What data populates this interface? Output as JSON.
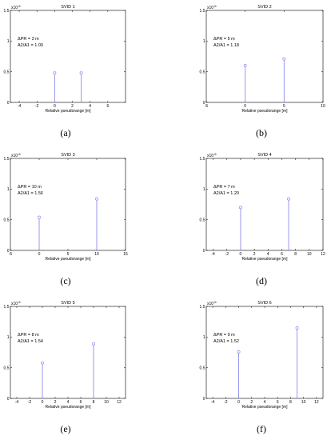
{
  "colors": {
    "stem": "#8c8cf0",
    "axis": "#000000",
    "background": "#ffffff"
  },
  "chart_data": [
    {
      "type": "stem",
      "title": "SVID 1",
      "xlabel": "Relative pseudorange [m]",
      "ylabel": "",
      "exponent": "-6",
      "xlim": [
        -5,
        8
      ],
      "xticks": [
        "-4",
        "-2",
        "0",
        "2",
        "4",
        "6"
      ],
      "xtick_values": [
        -4,
        -2,
        0,
        2,
        4,
        6
      ],
      "ylim": [
        0,
        1.5
      ],
      "yticks": [
        "0",
        "0.5",
        "1",
        "1.5"
      ],
      "ytick_values": [
        0,
        0.5,
        1,
        1.5
      ],
      "annotations": [
        "ΔPR = 3 m",
        "A2/A1 = 1.00"
      ],
      "caption": "(a)",
      "x": [
        0,
        3
      ],
      "y": [
        0.48,
        0.48
      ]
    },
    {
      "type": "stem",
      "title": "SVID 2",
      "xlabel": "Relative pseudorange [m]",
      "ylabel": "",
      "exponent": "-6",
      "xlim": [
        -5,
        10
      ],
      "xticks": [
        "-5",
        "0",
        "5",
        "10"
      ],
      "xtick_values": [
        -5,
        0,
        5,
        10
      ],
      "ylim": [
        0,
        1.5
      ],
      "yticks": [
        "0",
        "0.5",
        "1",
        "1.5"
      ],
      "ytick_values": [
        0,
        0.5,
        1,
        1.5
      ],
      "annotations": [
        "ΔPR = 5 m",
        "A2/A1 = 1.18"
      ],
      "caption": "(b)",
      "x": [
        0,
        5
      ],
      "y": [
        0.6,
        0.71
      ]
    },
    {
      "type": "stem",
      "title": "SVID 3",
      "xlabel": "Relative pseudorange [m]",
      "ylabel": "",
      "exponent": "-6",
      "xlim": [
        -5,
        15
      ],
      "xticks": [
        "-5",
        "0",
        "5",
        "10",
        "15"
      ],
      "xtick_values": [
        -5,
        0,
        5,
        10,
        15
      ],
      "ylim": [
        0,
        1.5
      ],
      "yticks": [
        "0",
        "0.5",
        "1",
        "1.5"
      ],
      "ytick_values": [
        0,
        0.5,
        1,
        1.5
      ],
      "annotations": [
        "ΔPR = 10 m",
        "A2/A1 = 1.56"
      ],
      "caption": "(c)",
      "x": [
        0,
        10
      ],
      "y": [
        0.54,
        0.84
      ]
    },
    {
      "type": "stem",
      "title": "SVID 4",
      "xlabel": "Relative pseudorange [m]",
      "ylabel": "",
      "exponent": "-6",
      "xlim": [
        -5,
        12
      ],
      "xticks": [
        "-4",
        "-2",
        "0",
        "2",
        "4",
        "6",
        "8",
        "10",
        "12"
      ],
      "xtick_values": [
        -4,
        -2,
        0,
        2,
        4,
        6,
        8,
        10,
        12
      ],
      "ylim": [
        0,
        1.5
      ],
      "yticks": [
        "0",
        "0.5",
        "1",
        "1.5"
      ],
      "ytick_values": [
        0,
        0.5,
        1,
        1.5
      ],
      "annotations": [
        "ΔPR = 7 m",
        "A2/A1 = 1.20"
      ],
      "caption": "(d)",
      "x": [
        0,
        7
      ],
      "y": [
        0.7,
        0.84
      ]
    },
    {
      "type": "stem",
      "title": "SVID 5",
      "xlabel": "Relative pseudorange [m]",
      "ylabel": "",
      "exponent": "-6",
      "xlim": [
        -5,
        13
      ],
      "xticks": [
        "-4",
        "-2",
        "0",
        "2",
        "4",
        "6",
        "8",
        "10",
        "12"
      ],
      "xtick_values": [
        -4,
        -2,
        0,
        2,
        4,
        6,
        8,
        10,
        12
      ],
      "ylim": [
        0,
        1.5
      ],
      "yticks": [
        "0",
        "0.5",
        "1",
        "1.5"
      ],
      "ytick_values": [
        0,
        0.5,
        1,
        1.5
      ],
      "annotations": [
        "ΔPR = 8 m",
        "A2/A1 = 1.54"
      ],
      "caption": "(e)",
      "x": [
        0,
        8
      ],
      "y": [
        0.58,
        0.89
      ]
    },
    {
      "type": "stem",
      "title": "SVID 6",
      "xlabel": "Relative pseudorange [m]",
      "ylabel": "",
      "exponent": "-6",
      "xlim": [
        -5,
        13
      ],
      "xticks": [
        "-4",
        "-2",
        "0",
        "2",
        "4",
        "6",
        "8",
        "10",
        "12"
      ],
      "xtick_values": [
        -4,
        -2,
        0,
        2,
        4,
        6,
        8,
        10,
        12
      ],
      "ylim": [
        0,
        1.5
      ],
      "yticks": [
        "0",
        "0.5",
        "1",
        "1.5"
      ],
      "ytick_values": [
        0,
        0.5,
        1,
        1.5
      ],
      "annotations": [
        "ΔPR = 9 m",
        "A2/A1 = 1.52"
      ],
      "caption": "(f)",
      "x": [
        0,
        9
      ],
      "y": [
        0.76,
        1.15
      ]
    }
  ]
}
